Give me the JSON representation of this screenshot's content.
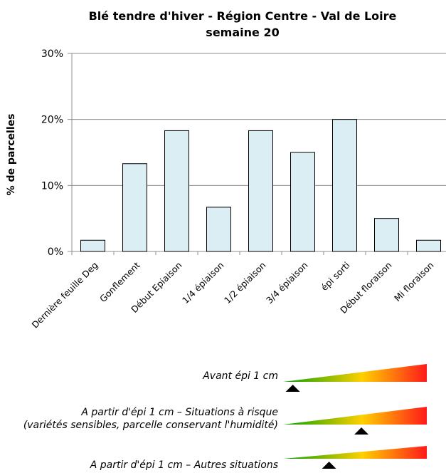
{
  "chart_data": {
    "type": "bar",
    "title": "Blé tendre d'hiver - Région Centre - Val de Loire",
    "subtitle": "semaine 20",
    "xlabel": "",
    "ylabel": "% de parcelles",
    "ylim": [
      0,
      30
    ],
    "yticks": [
      "0%",
      "10%",
      "20%",
      "30%"
    ],
    "grid": true,
    "categories": [
      "Dernière feuille Deg",
      "Gonflement",
      "Début Epiaison",
      "1/4 épiaison",
      "1/2 épiaison",
      "3/4 épiaison",
      "épi sorti",
      "Début floraison",
      "Mi floraison"
    ],
    "values": [
      1.7,
      13.3,
      18.3,
      6.7,
      18.3,
      15.0,
      20.0,
      5.0,
      1.7
    ]
  },
  "colors": {
    "bar_fill": "#daeef3",
    "bar_stroke": "#000000",
    "grid": "#8c8c8c",
    "gauge_low": "#00a000",
    "gauge_mid": "#ffd000",
    "gauge_high": "#ff1a1a"
  },
  "risk_gauges": [
    {
      "lines": [
        "Avant épi 1 cm"
      ],
      "level": 0.02
    },
    {
      "lines": [
        "A partir d'épi 1 cm – Situations à risque",
        "(variétés sensibles, parcelle conservant l'humidité)"
      ],
      "level": 0.55
    },
    {
      "lines": [
        "A partir d'épi 1 cm – Autres situations"
      ],
      "level": 0.3
    }
  ]
}
